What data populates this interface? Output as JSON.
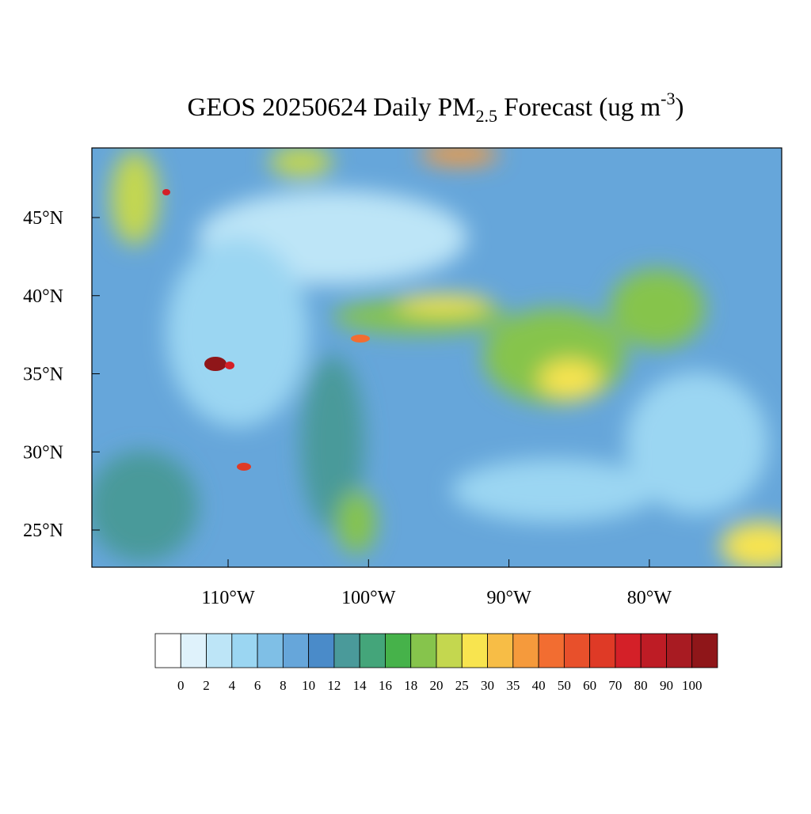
{
  "title": {
    "main": "GEOS 20250624 Daily PM",
    "sub": "2.5",
    "rest": " Forecast (ug m",
    "sup": "-3",
    "end": ")"
  },
  "map": {
    "lat_ticks": [
      {
        "value": 25,
        "label": "25°N"
      },
      {
        "value": 30,
        "label": "30°N"
      },
      {
        "value": 35,
        "label": "35°N"
      },
      {
        "value": 40,
        "label": "40°N"
      },
      {
        "value": 45,
        "label": "45°N"
      }
    ],
    "lon_ticks": [
      {
        "value": -110,
        "label": "110°W"
      },
      {
        "value": -100,
        "label": "100°W"
      },
      {
        "value": -90,
        "label": "90°W"
      },
      {
        "value": -80,
        "label": "80°W"
      }
    ]
  },
  "colorbar": {
    "levels": [
      0,
      2,
      4,
      6,
      8,
      10,
      12,
      14,
      16,
      18,
      20,
      25,
      30,
      35,
      40,
      50,
      60,
      70,
      80,
      90,
      100
    ],
    "colors": [
      "#ffffff",
      "#dff2fb",
      "#bde5f7",
      "#9bd6f2",
      "#7fbfe6",
      "#66a6da",
      "#4a8bc9",
      "#4a9a9a",
      "#44a57a",
      "#46b24a",
      "#86c44c",
      "#c4d74f",
      "#f8e44f",
      "#f7bd46",
      "#f59a3c",
      "#f26d31",
      "#e8502b",
      "#df3a26",
      "#d42028",
      "#be1c25",
      "#a81b22",
      "#8f1619"
    ]
  }
}
